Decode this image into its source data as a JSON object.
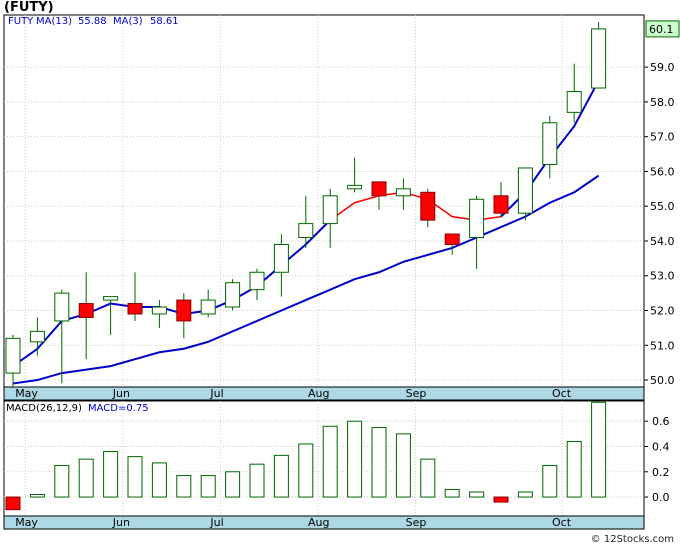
{
  "title": "(FUTY)",
  "footer": "© 12Stocks.com",
  "colors": {
    "up_body": "#ffffff",
    "candle_outline": "#006600",
    "down_body": "#ff0000",
    "ma13": "#0000cc",
    "ma3_segment_red": "#ff0000",
    "grid": "#cccccc",
    "axis_band": "#add8e6",
    "macd_up": "#006600",
    "macd_down": "#ff0000",
    "last_price_box": "#ccffcc"
  },
  "legend": {
    "symbol": "FUTY",
    "ma13_label": "MA(13)",
    "ma13_value": "55.88",
    "ma3_label": "MA(3)",
    "ma3_value": "58.61",
    "macd_label": "MACD(26,12,9)",
    "macd_value_label": "MACD=0.75"
  },
  "price_axis": [
    "50.0",
    "51.0",
    "52.0",
    "53.0",
    "54.0",
    "55.0",
    "56.0",
    "57.0",
    "58.0",
    "59.0",
    "60.1"
  ],
  "macd_axis": [
    "0.0",
    "0.2",
    "0.4",
    "0.6"
  ],
  "months": [
    "May",
    "Jun",
    "Jul",
    "Aug",
    "Sep",
    "Oct"
  ],
  "chart_data": {
    "type": "candlestick",
    "title": "(FUTY)",
    "ylim": [
      49.8,
      60.5
    ],
    "last_price": 60.1,
    "month_start_index": {
      "May": 1,
      "Jun": 5,
      "Jul": 9,
      "Aug": 13,
      "Sep": 17,
      "Oct": 23
    },
    "candles": [
      {
        "o": 50.2,
        "h": 51.3,
        "l": 49.8,
        "c": 51.2
      },
      {
        "o": 51.1,
        "h": 51.8,
        "l": 50.7,
        "c": 51.4
      },
      {
        "o": 51.7,
        "h": 52.6,
        "l": 49.9,
        "c": 52.5
      },
      {
        "o": 52.2,
        "h": 53.1,
        "l": 50.6,
        "c": 51.8
      },
      {
        "o": 52.3,
        "h": 52.4,
        "l": 51.3,
        "c": 52.4
      },
      {
        "o": 52.2,
        "h": 53.1,
        "l": 51.7,
        "c": 51.9
      },
      {
        "o": 51.9,
        "h": 52.3,
        "l": 51.5,
        "c": 52.1
      },
      {
        "o": 52.3,
        "h": 52.5,
        "l": 51.2,
        "c": 51.7
      },
      {
        "o": 51.9,
        "h": 52.6,
        "l": 51.8,
        "c": 52.3
      },
      {
        "o": 52.1,
        "h": 52.9,
        "l": 52.0,
        "c": 52.8
      },
      {
        "o": 52.6,
        "h": 53.2,
        "l": 52.3,
        "c": 53.1
      },
      {
        "o": 53.1,
        "h": 54.2,
        "l": 52.4,
        "c": 53.9
      },
      {
        "o": 54.1,
        "h": 55.3,
        "l": 53.8,
        "c": 54.5
      },
      {
        "o": 54.5,
        "h": 55.5,
        "l": 53.8,
        "c": 55.3
      },
      {
        "o": 55.5,
        "h": 56.4,
        "l": 55.4,
        "c": 55.6
      },
      {
        "o": 55.7,
        "h": 55.7,
        "l": 54.9,
        "c": 55.3
      },
      {
        "o": 55.3,
        "h": 55.8,
        "l": 54.9,
        "c": 55.5
      },
      {
        "o": 55.4,
        "h": 55.5,
        "l": 54.4,
        "c": 54.6
      },
      {
        "o": 54.2,
        "h": 54.2,
        "l": 53.6,
        "c": 53.9
      },
      {
        "o": 54.1,
        "h": 55.3,
        "l": 53.2,
        "c": 55.2
      },
      {
        "o": 55.3,
        "h": 55.7,
        "l": 54.7,
        "c": 54.8
      },
      {
        "o": 54.8,
        "h": 56.1,
        "l": 54.6,
        "c": 56.1
      },
      {
        "o": 56.2,
        "h": 57.6,
        "l": 55.8,
        "c": 57.4
      },
      {
        "o": 57.7,
        "h": 59.1,
        "l": 57.4,
        "c": 58.3
      },
      {
        "o": 58.4,
        "h": 60.3,
        "l": 58.4,
        "c": 60.1
      }
    ],
    "ma13": [
      49.9,
      50.0,
      50.2,
      50.3,
      50.4,
      50.6,
      50.8,
      50.9,
      51.1,
      51.4,
      51.7,
      52.0,
      52.3,
      52.6,
      52.9,
      53.1,
      53.4,
      53.6,
      53.8,
      54.1,
      54.4,
      54.7,
      55.1,
      55.4,
      55.88
    ],
    "ma3": [
      50.4,
      50.9,
      51.7,
      51.9,
      52.2,
      52.1,
      52.1,
      51.9,
      52.0,
      52.3,
      52.7,
      53.3,
      53.9,
      54.6,
      55.1,
      55.3,
      55.4,
      55.2,
      54.7,
      54.6,
      54.7,
      55.4,
      56.4,
      57.3,
      58.61
    ],
    "ma3_red_range": [
      13,
      20
    ],
    "macd": [
      -0.1,
      0.02,
      0.25,
      0.3,
      0.36,
      0.32,
      0.27,
      0.17,
      0.17,
      0.2,
      0.26,
      0.33,
      0.42,
      0.56,
      0.6,
      0.55,
      0.5,
      0.3,
      0.06,
      0.04,
      -0.04,
      0.04,
      0.25,
      0.44,
      0.75
    ],
    "macd_ylim": [
      -0.15,
      0.76
    ]
  }
}
